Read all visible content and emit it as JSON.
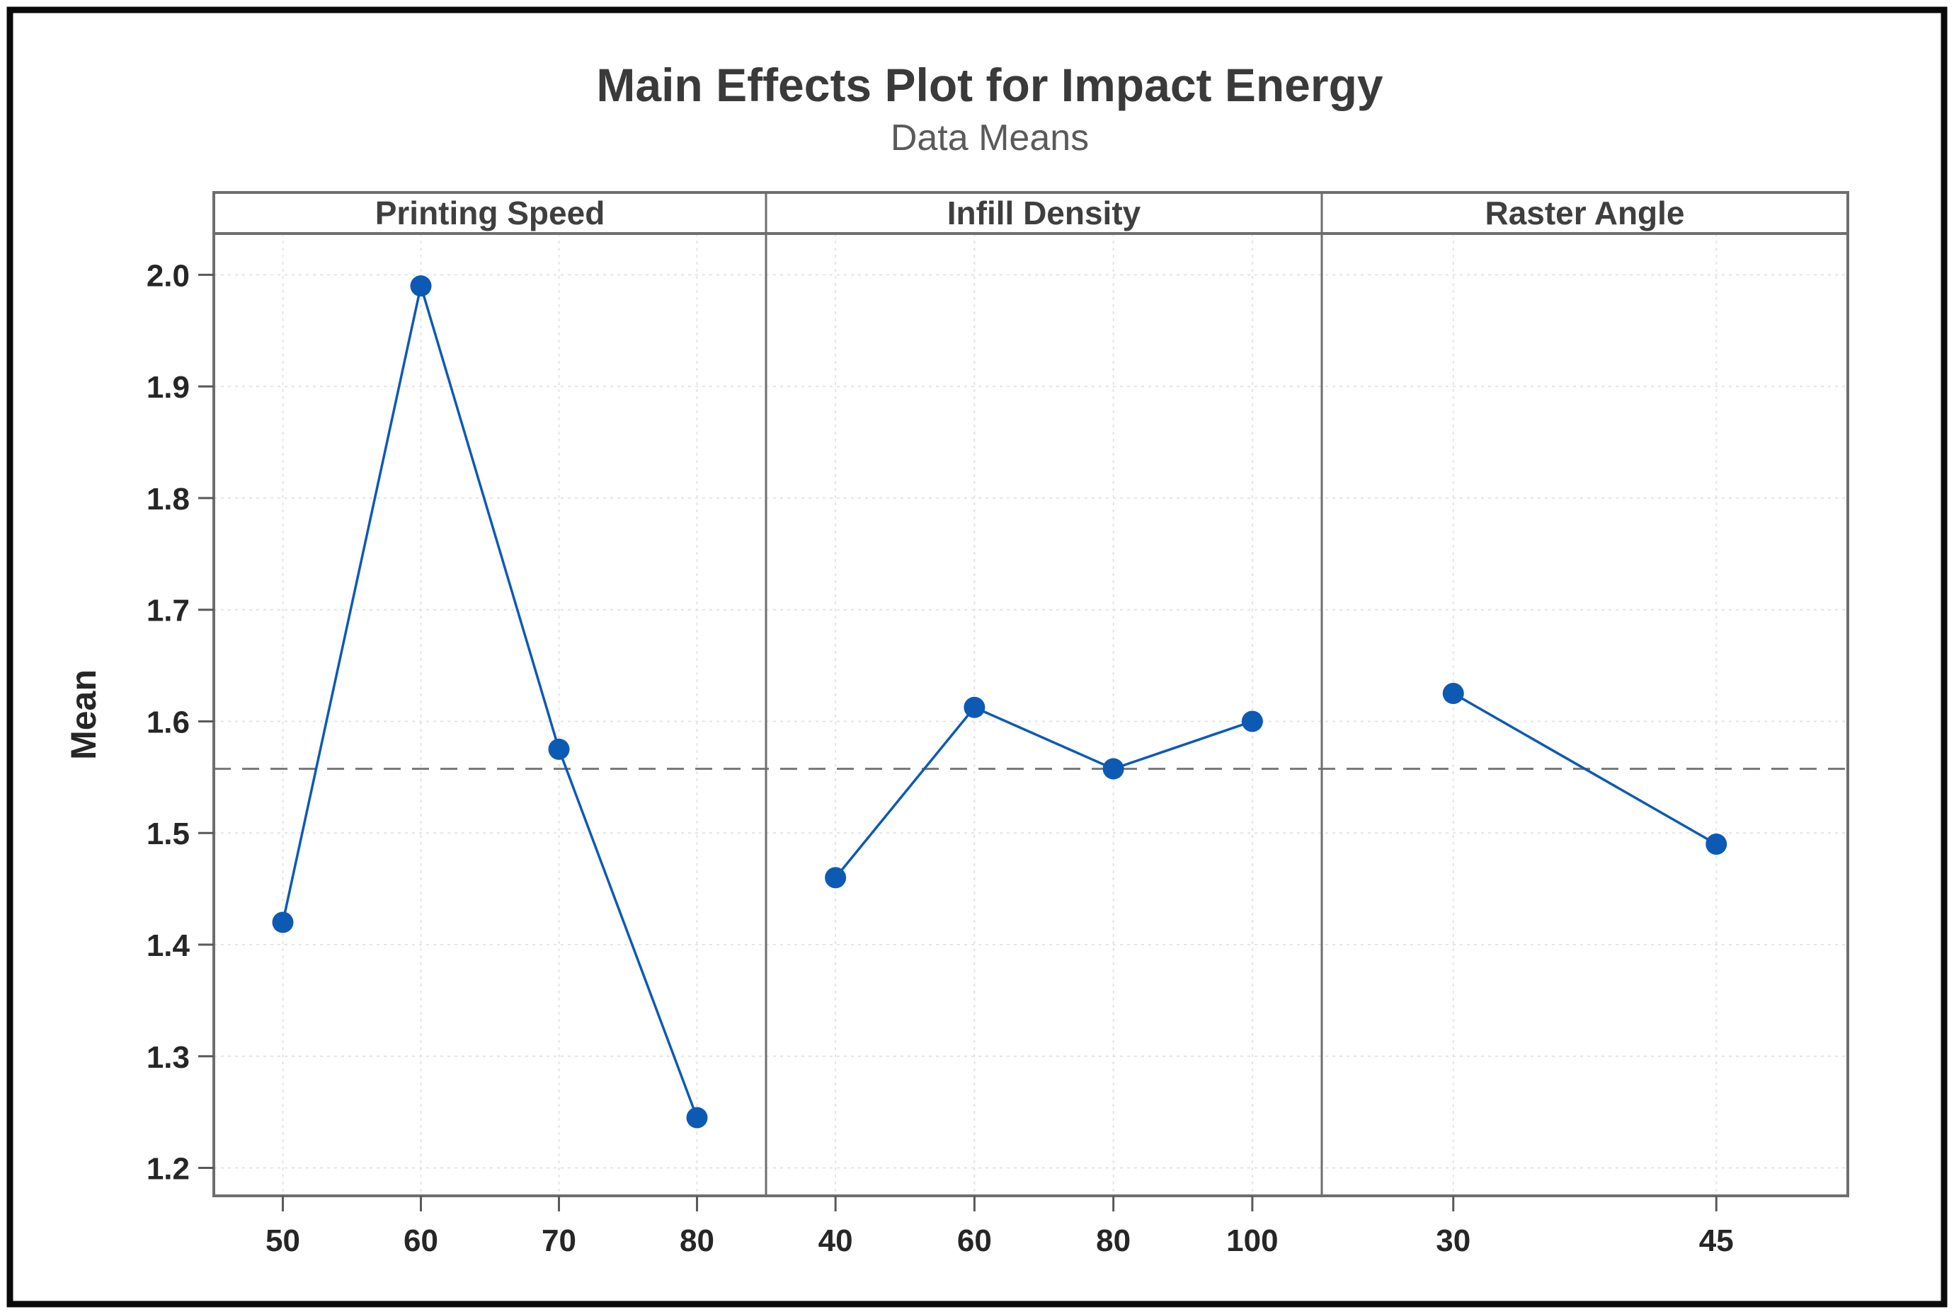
{
  "chart": {
    "title": "Main Effects Plot for Impact Energy",
    "subtitle": "Data Means",
    "ylabel": "Mean"
  },
  "colors": {
    "series": "#0d5ab5",
    "mean_reference_line": "#7a7a7a",
    "frame": "#6e6e6e",
    "tick_mark": "#595959",
    "grid_line": "#e4e4e4",
    "outer_border": "#0a0a0a",
    "title_text": "#3a3a3a",
    "subtitle_text": "#5a5a5a",
    "tick_text": "#262626",
    "background": "#ffffff"
  },
  "chart_data": {
    "type": "line",
    "title": "Main Effects Plot for Impact Energy",
    "subtitle": "Data Means",
    "ylabel": "Mean",
    "ylim": [
      1.175,
      2.037
    ],
    "yticks": [
      2.0,
      1.9,
      1.8,
      1.7,
      1.6,
      1.5,
      1.4,
      1.3,
      1.2
    ],
    "grand_mean": 1.5575,
    "grid": true,
    "legend_position": "none",
    "panels": [
      {
        "label": "Printing Speed",
        "categories": [
          "50",
          "60",
          "70",
          "80"
        ],
        "values": [
          1.42,
          1.99,
          1.575,
          1.245
        ]
      },
      {
        "label": "Infill Density",
        "categories": [
          "40",
          "60",
          "80",
          "100"
        ],
        "values": [
          1.46,
          1.6125,
          1.5575,
          1.6
        ]
      },
      {
        "label": "Raster Angle",
        "categories": [
          "30",
          "45"
        ],
        "values": [
          1.625,
          1.49
        ]
      }
    ]
  }
}
